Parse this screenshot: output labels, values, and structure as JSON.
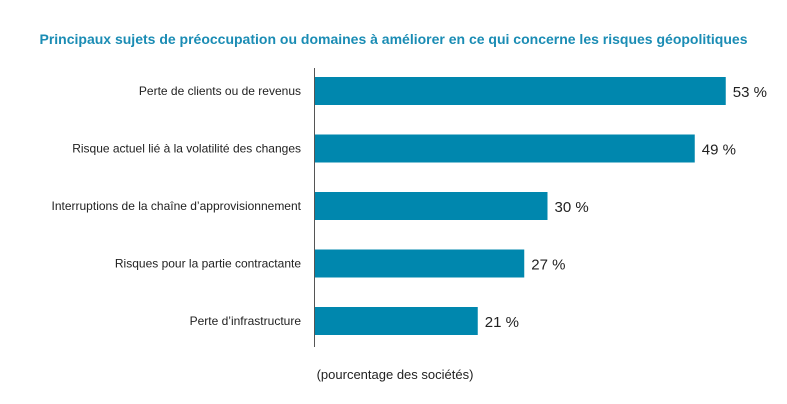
{
  "chart_data": {
    "type": "bar",
    "orientation": "horizontal",
    "title": "Principaux sujets de préoccupation ou domaines à améliorer en ce qui concerne les risques géopolitiques",
    "categories": [
      "Perte de clients ou de revenus",
      "Risque actuel lié à la volatilité des changes",
      "Interruptions de la chaîne d’approvisionnement",
      "Risques pour la partie contractante",
      "Perte d’infrastructure"
    ],
    "values": [
      53,
      49,
      30,
      27,
      21
    ],
    "value_labels": [
      "53 %",
      "49 %",
      "30 %",
      "27 %",
      "21 %"
    ],
    "xlabel": "(pourcentage des sociétés)",
    "ylabel": "",
    "xlim": [
      0,
      100
    ],
    "grid": false,
    "legend": "none",
    "bar_color": "#0087ae",
    "title_color": "#1a8cb4"
  }
}
